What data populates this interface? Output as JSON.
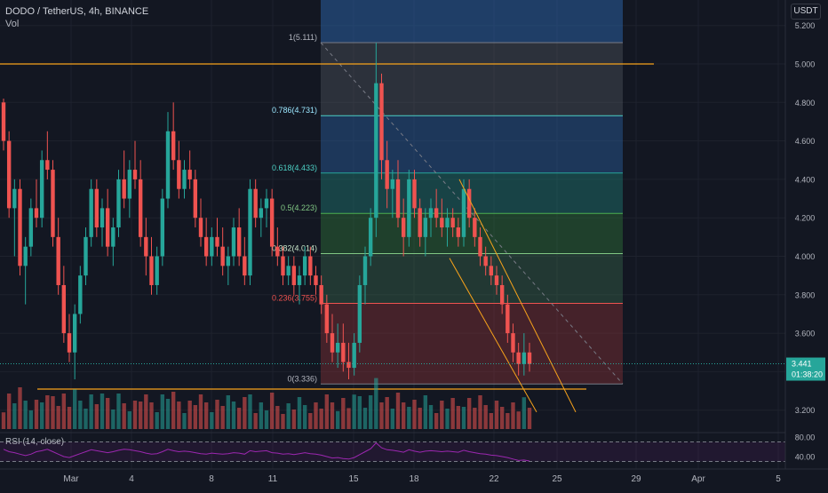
{
  "header": {
    "title": "DODO / TetherUS, 4h, BINANCE",
    "volume_label": "Vol",
    "unit_badge": "USDT"
  },
  "price_axis": {
    "ticks": [
      "5.200",
      "5.000",
      "4.800",
      "4.600",
      "4.400",
      "4.200",
      "4.000",
      "3.800",
      "3.600",
      "3.400",
      "3.200"
    ],
    "current_price": "3.441",
    "countdown": "01:38:20"
  },
  "rsi_axis": {
    "label": "RSI (14, close)",
    "ticks": [
      "80.00",
      "40.00"
    ]
  },
  "time_axis": {
    "ticks": [
      "Mar",
      "4",
      "8",
      "11",
      "15",
      "18",
      "22",
      "25",
      "29",
      "Apr",
      "5"
    ]
  },
  "fib_levels": [
    {
      "label": "1(5.111)",
      "price": 5.111
    },
    {
      "label": "0.786(4.731)",
      "price": 4.731
    },
    {
      "label": "0.618(4.433)",
      "price": 4.433
    },
    {
      "label": "0.5(4.223)",
      "price": 4.223
    },
    {
      "label": "0.382(4.014)",
      "price": 4.014
    },
    {
      "label": "0.236(3.755)",
      "price": 3.755
    },
    {
      "label": "0(3.336)",
      "price": 3.336
    }
  ],
  "colors": {
    "background": "#131722",
    "up": "#26a69a",
    "down": "#ef5350",
    "orange": "#f7a21b",
    "rsi": "#9c27b0",
    "fib_dashed": "#787b86",
    "price_tag": "#26a69a"
  },
  "chart_data": {
    "type": "candlestick",
    "symbol": "DODO / TetherUS",
    "timeframe": "4h",
    "exchange": "BINANCE",
    "ylabel": "USDT",
    "ylim": [
      3.15,
      5.25
    ],
    "current_price": 3.441,
    "candles": [
      [
        4.8,
        4.82,
        4.55,
        4.6
      ],
      [
        4.6,
        4.65,
        4.2,
        4.25
      ],
      [
        4.25,
        4.4,
        4.0,
        4.35
      ],
      [
        4.35,
        4.4,
        3.9,
        3.95
      ],
      [
        3.95,
        4.1,
        3.75,
        4.05
      ],
      [
        4.05,
        4.3,
        4.0,
        4.25
      ],
      [
        4.25,
        4.4,
        4.15,
        4.2
      ],
      [
        4.2,
        4.55,
        4.15,
        4.5
      ],
      [
        4.5,
        4.65,
        4.4,
        4.45
      ],
      [
        4.45,
        4.5,
        4.05,
        4.1
      ],
      [
        4.1,
        4.2,
        3.8,
        3.85
      ],
      [
        3.85,
        3.95,
        3.55,
        3.6
      ],
      [
        3.6,
        3.7,
        3.45,
        3.5
      ],
      [
        3.5,
        3.75,
        3.36,
        3.7
      ],
      [
        3.7,
        3.95,
        3.65,
        3.9
      ],
      [
        3.9,
        4.15,
        3.85,
        4.1
      ],
      [
        4.1,
        4.4,
        4.05,
        4.35
      ],
      [
        4.35,
        4.4,
        4.1,
        4.15
      ],
      [
        4.15,
        4.3,
        4.05,
        4.25
      ],
      [
        4.25,
        4.35,
        4.0,
        4.05
      ],
      [
        4.05,
        4.2,
        3.95,
        4.15
      ],
      [
        4.15,
        4.45,
        4.1,
        4.4
      ],
      [
        4.4,
        4.55,
        4.25,
        4.3
      ],
      [
        4.3,
        4.5,
        4.2,
        4.45
      ],
      [
        4.45,
        4.6,
        4.35,
        4.4
      ],
      [
        4.4,
        4.5,
        4.05,
        4.1
      ],
      [
        4.1,
        4.2,
        3.9,
        4.0
      ],
      [
        4.0,
        4.1,
        3.8,
        3.85
      ],
      [
        3.85,
        4.05,
        3.8,
        4.0
      ],
      [
        4.0,
        4.35,
        3.95,
        4.3
      ],
      [
        4.3,
        4.75,
        4.25,
        4.65
      ],
      [
        4.65,
        4.8,
        4.45,
        4.5
      ],
      [
        4.5,
        4.6,
        4.3,
        4.35
      ],
      [
        4.35,
        4.5,
        4.3,
        4.45
      ],
      [
        4.45,
        4.55,
        4.35,
        4.4
      ],
      [
        4.4,
        4.45,
        4.15,
        4.2
      ],
      [
        4.2,
        4.3,
        4.05,
        4.1
      ],
      [
        4.1,
        4.2,
        3.95,
        4.0
      ],
      [
        4.0,
        4.15,
        3.95,
        4.1
      ],
      [
        4.1,
        4.2,
        4.0,
        4.05
      ],
      [
        4.05,
        4.15,
        3.9,
        3.95
      ],
      [
        3.95,
        4.05,
        3.85,
        4.0
      ],
      [
        4.0,
        4.2,
        3.95,
        4.15
      ],
      [
        4.15,
        4.25,
        3.95,
        4.0
      ],
      [
        4.0,
        4.1,
        3.85,
        3.9
      ],
      [
        3.9,
        4.4,
        3.85,
        4.35
      ],
      [
        4.35,
        4.4,
        4.15,
        4.2
      ],
      [
        4.2,
        4.3,
        4.1,
        4.25
      ],
      [
        4.25,
        4.35,
        4.15,
        4.3
      ],
      [
        4.3,
        4.35,
        4.0,
        4.05
      ],
      [
        4.05,
        4.15,
        3.95,
        4.0
      ],
      [
        4.0,
        4.05,
        3.85,
        3.9
      ],
      [
        3.9,
        4.0,
        3.85,
        3.95
      ],
      [
        3.95,
        4.0,
        3.8,
        3.85
      ],
      [
        3.85,
        3.95,
        3.75,
        3.9
      ],
      [
        3.9,
        4.05,
        3.85,
        4.0
      ],
      [
        4.0,
        4.05,
        3.85,
        3.9
      ],
      [
        3.9,
        3.95,
        3.8,
        3.85
      ],
      [
        3.85,
        3.9,
        3.7,
        3.75
      ],
      [
        3.75,
        3.8,
        3.55,
        3.6
      ],
      [
        3.6,
        3.7,
        3.45,
        3.5
      ],
      [
        3.5,
        3.65,
        3.42,
        3.55
      ],
      [
        3.55,
        3.65,
        3.4,
        3.45
      ],
      [
        3.45,
        3.55,
        3.36,
        3.42
      ],
      [
        3.42,
        3.6,
        3.38,
        3.55
      ],
      [
        3.55,
        3.9,
        3.5,
        3.85
      ],
      [
        3.85,
        4.05,
        3.75,
        4.0
      ],
      [
        4.0,
        4.25,
        3.95,
        4.2
      ],
      [
        4.2,
        5.11,
        4.1,
        4.9
      ],
      [
        4.9,
        4.95,
        4.4,
        4.5
      ],
      [
        4.5,
        4.6,
        4.25,
        4.35
      ],
      [
        4.35,
        4.45,
        4.2,
        4.4
      ],
      [
        4.4,
        4.5,
        4.15,
        4.2
      ],
      [
        4.2,
        4.3,
        4.0,
        4.1
      ],
      [
        4.1,
        4.45,
        4.05,
        4.4
      ],
      [
        4.4,
        4.45,
        4.2,
        4.25
      ],
      [
        4.25,
        4.3,
        4.05,
        4.1
      ],
      [
        4.1,
        4.25,
        4.0,
        4.2
      ],
      [
        4.2,
        4.3,
        4.1,
        4.25
      ],
      [
        4.25,
        4.35,
        4.15,
        4.2
      ],
      [
        4.2,
        4.3,
        4.1,
        4.15
      ],
      [
        4.15,
        4.25,
        4.05,
        4.2
      ],
      [
        4.2,
        4.25,
        4.1,
        4.15
      ],
      [
        4.15,
        4.2,
        4.05,
        4.1
      ],
      [
        4.1,
        4.4,
        4.05,
        4.35
      ],
      [
        4.35,
        4.4,
        4.15,
        4.2
      ],
      [
        4.2,
        4.25,
        4.05,
        4.1
      ],
      [
        4.1,
        4.15,
        3.95,
        4.0
      ],
      [
        4.0,
        4.05,
        3.9,
        3.95
      ],
      [
        3.95,
        4.0,
        3.85,
        3.9
      ],
      [
        3.9,
        3.95,
        3.8,
        3.85
      ],
      [
        3.85,
        3.9,
        3.7,
        3.75
      ],
      [
        3.75,
        3.8,
        3.55,
        3.6
      ],
      [
        3.6,
        3.65,
        3.45,
        3.5
      ],
      [
        3.5,
        3.55,
        3.38,
        3.44
      ],
      [
        3.44,
        3.6,
        3.38,
        3.5
      ],
      [
        3.5,
        3.55,
        3.4,
        3.44
      ]
    ],
    "fibonacci": {
      "levels": [
        1,
        0.786,
        0.618,
        0.5,
        0.382,
        0.236,
        0
      ],
      "prices": [
        5.111,
        4.731,
        4.433,
        4.223,
        4.014,
        3.755,
        3.336
      ]
    },
    "rsi": {
      "label": "RSI (14, close)",
      "ylim": [
        20,
        100
      ],
      "bands": [
        70,
        30
      ],
      "values": [
        55,
        50,
        48,
        45,
        42,
        45,
        50,
        52,
        55,
        50,
        45,
        40,
        38,
        42,
        46,
        50,
        54,
        52,
        50,
        48,
        50,
        53,
        55,
        54,
        52,
        50,
        47,
        45,
        46,
        50,
        55,
        52,
        50,
        51,
        50,
        48,
        46,
        45,
        47,
        46,
        45,
        46,
        48,
        47,
        45,
        52,
        50,
        51,
        52,
        48,
        47,
        45,
        46,
        44,
        46,
        48,
        46,
        45,
        43,
        40,
        37,
        38,
        36,
        35,
        38,
        44,
        50,
        56,
        68,
        58,
        54,
        53,
        51,
        49,
        54,
        51,
        49,
        51,
        52,
        51,
        50,
        51,
        50,
        49,
        53,
        50,
        48,
        46,
        45,
        43,
        42,
        40,
        38,
        35,
        32,
        33,
        31
      ]
    },
    "horizontal_lines": [
      5.0,
      3.336
    ]
  }
}
